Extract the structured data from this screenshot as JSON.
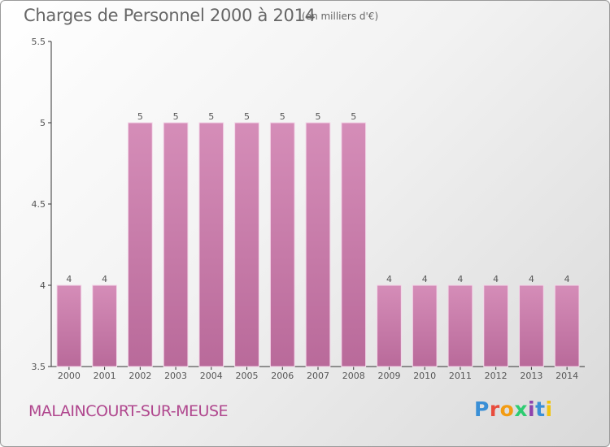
{
  "header": {
    "title": "Charges de Personnel 2000 à 2014",
    "unit": "(en milliers d'€)"
  },
  "footer": {
    "place": "MALAINCOURT-SUR-MEUSE",
    "logo_text": "Proxiti",
    "logo_colors": [
      "#3a8fd6",
      "#e84c3d",
      "#f39c12",
      "#2ecc71",
      "#8e44ad",
      "#3a8fd6",
      "#f1c40f"
    ]
  },
  "colors": {
    "bar": "#d58db8",
    "bar_dark": "#b96a9a",
    "bar_edge": "#f3d6e8",
    "title": "#666666",
    "place": "#b0478e"
  },
  "chart_data": {
    "type": "bar",
    "title": "Charges de Personnel 2000 à 2014",
    "subtitle": "(en milliers d'€)",
    "categories": [
      "2000",
      "2001",
      "2002",
      "2003",
      "2004",
      "2005",
      "2006",
      "2007",
      "2008",
      "2009",
      "2010",
      "2011",
      "2012",
      "2013",
      "2014"
    ],
    "values": [
      4,
      4,
      5,
      5,
      5,
      5,
      5,
      5,
      5,
      4,
      4,
      4,
      4,
      4,
      4
    ],
    "data_labels": [
      "4",
      "4",
      "5",
      "5",
      "5",
      "5",
      "5",
      "5",
      "5",
      "4",
      "4",
      "4",
      "4",
      "4",
      "4"
    ],
    "ylim": [
      3.5,
      5.5
    ],
    "yticks": [
      "3.5",
      "4",
      "4.5",
      "5",
      "5.5"
    ],
    "grid": false,
    "legend": "none",
    "xlabel": "",
    "ylabel": ""
  }
}
